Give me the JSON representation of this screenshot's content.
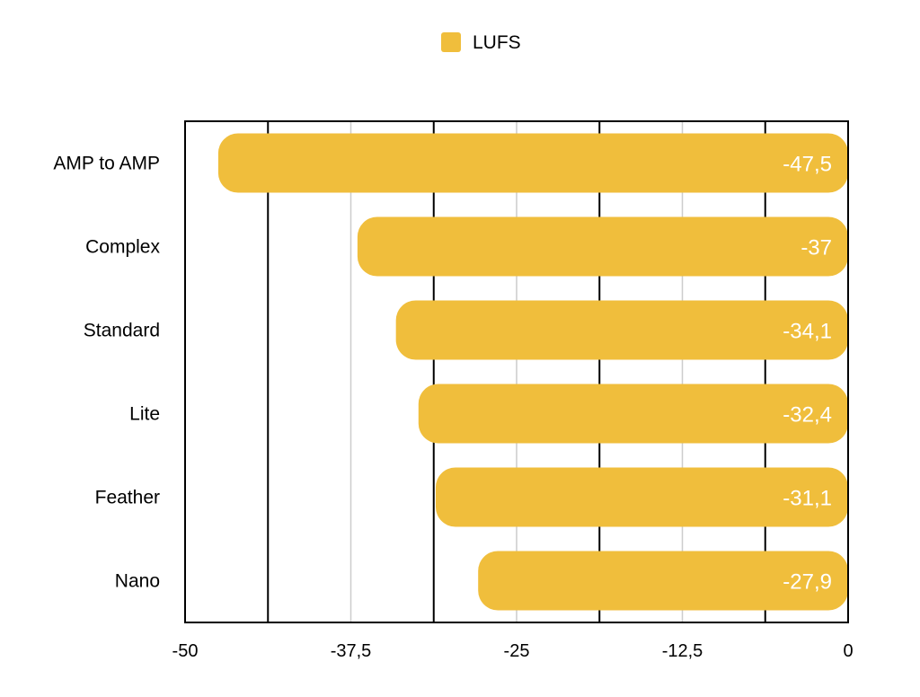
{
  "chart_data": {
    "type": "bar",
    "orientation": "horizontal",
    "legend": {
      "label": "LUFS",
      "position": "top-center"
    },
    "categories": [
      "AMP to AMP",
      "Complex",
      "Standard",
      "Lite",
      "Feather",
      "Nano"
    ],
    "series": [
      {
        "name": "LUFS",
        "values": [
          -47.5,
          -37,
          -34.1,
          -32.4,
          -31.1,
          -27.9
        ],
        "labels": [
          "-47,5",
          "-37",
          "-34,1",
          "-32,4",
          "-31,1",
          "-27,9"
        ],
        "color": "#F0BE3C"
      }
    ],
    "xlim": [
      -50,
      0
    ],
    "x_ticks": [
      -50,
      -37.5,
      -25,
      -12.5,
      0
    ],
    "x_tick_labels": [
      "-50",
      "-37,5",
      "-25",
      "-12,5",
      "0"
    ],
    "grid": true,
    "grid_color": "#cccccc",
    "major_grid": [
      -43.75,
      -31.25,
      -18.75,
      -6.25
    ],
    "major_grid_color": "#000000",
    "label_color": "#ffffff"
  }
}
